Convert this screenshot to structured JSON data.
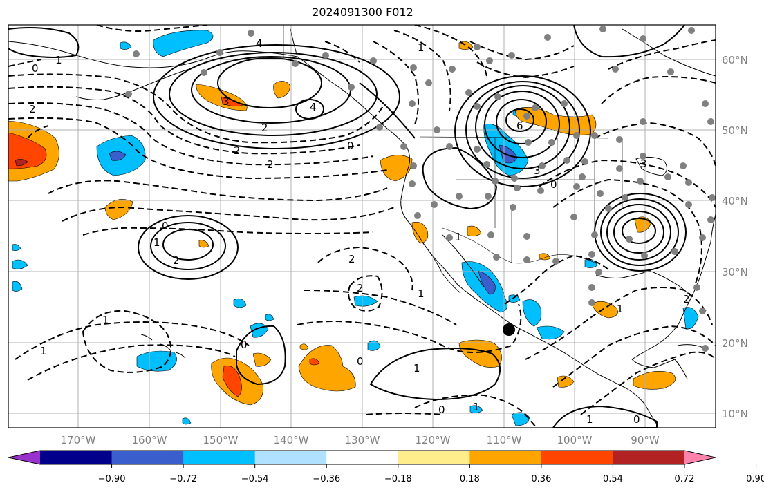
{
  "title": "2024091300 F012",
  "lon_ticks": [
    "170°W",
    "160°W",
    "150°W",
    "140°W",
    "130°W",
    "120°W",
    "110°W",
    "100°W",
    "90°W"
  ],
  "lat_ticks": [
    "60°N",
    "50°N",
    "40°N",
    "30°N",
    "20°N",
    "10°N"
  ],
  "colorbar": {
    "colors": [
      "#9932cc",
      "#00008b",
      "#3a5fcd",
      "#00bfff",
      "#b0e2ff",
      "#ffffff",
      "#ffec8b",
      "#ffa500",
      "#ff4500",
      "#b22222",
      "#ff82ab"
    ],
    "labels": [
      "−0.90",
      "−0.72",
      "−0.54",
      "−0.36",
      "−0.18",
      "0.18",
      "0.36",
      "0.54",
      "0.72",
      "0.90"
    ]
  },
  "contour_labels": [
    "4",
    "3",
    "4",
    "2",
    "2",
    "0",
    "1",
    "2",
    "6",
    "3",
    "0",
    "2",
    "1",
    "0",
    "2",
    "1",
    "1",
    "0",
    "1",
    "1",
    "0",
    "2",
    "3",
    "1",
    "2",
    "1",
    "0",
    "1",
    "1",
    "0",
    "2",
    "0",
    "1"
  ]
}
